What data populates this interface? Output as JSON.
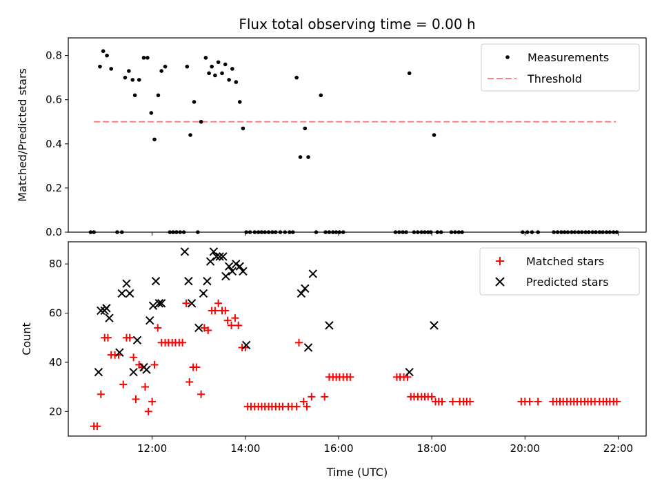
{
  "chart_data": [
    {
      "type": "scatter",
      "title": "Flux total observing time = 0.00 h",
      "xlabel": "",
      "ylabel": "Matched/Predicted stars",
      "ylim": [
        0,
        0.88
      ],
      "yticks": [
        "0.0",
        "0.2",
        "0.4",
        "0.6",
        "0.8"
      ],
      "ytick_values": [
        0,
        0.2,
        0.4,
        0.6,
        0.8
      ],
      "legend_position": "top-right",
      "threshold": {
        "name": "Threshold",
        "y": 0.5,
        "x": [
          10.75,
          21.95
        ],
        "color": "#ff8080",
        "style": "dashed"
      },
      "series": [
        {
          "name": "Measurements",
          "color": "#000000",
          "marker": "dot",
          "points": [
            [
              10.68,
              0
            ],
            [
              10.75,
              0
            ],
            [
              10.88,
              0.75
            ],
            [
              10.95,
              0.82
            ],
            [
              11.03,
              0.8
            ],
            [
              11.12,
              0.74
            ],
            [
              11.25,
              0
            ],
            [
              11.35,
              0
            ],
            [
              11.42,
              0.7
            ],
            [
              11.5,
              0.73
            ],
            [
              11.58,
              0.69
            ],
            [
              11.63,
              0.62
            ],
            [
              11.72,
              0.69
            ],
            [
              11.82,
              0.79
            ],
            [
              11.9,
              0.79
            ],
            [
              11.98,
              0.54
            ],
            [
              12.05,
              0.42
            ],
            [
              12.13,
              0.62
            ],
            [
              12.2,
              0.73
            ],
            [
              12.28,
              0.75
            ],
            [
              12.38,
              0
            ],
            [
              12.45,
              0
            ],
            [
              12.52,
              0
            ],
            [
              12.6,
              0
            ],
            [
              12.68,
              0
            ],
            [
              12.75,
              0.75
            ],
            [
              12.82,
              0.44
            ],
            [
              12.9,
              0.59
            ],
            [
              12.98,
              0
            ],
            [
              13.05,
              0.5
            ],
            [
              13.15,
              0.79
            ],
            [
              13.22,
              0.72
            ],
            [
              13.28,
              0.75
            ],
            [
              13.35,
              0.71
            ],
            [
              13.42,
              0.77
            ],
            [
              13.5,
              0.72
            ],
            [
              13.57,
              0.76
            ],
            [
              13.65,
              0.69
            ],
            [
              13.72,
              0.74
            ],
            [
              13.8,
              0.68
            ],
            [
              13.88,
              0.59
            ],
            [
              13.95,
              0.47
            ],
            [
              14.02,
              0
            ],
            [
              14.1,
              0
            ],
            [
              14.2,
              0
            ],
            [
              14.28,
              0
            ],
            [
              14.35,
              0
            ],
            [
              14.42,
              0
            ],
            [
              14.5,
              0
            ],
            [
              14.58,
              0
            ],
            [
              14.65,
              0
            ],
            [
              14.75,
              0
            ],
            [
              14.85,
              0
            ],
            [
              14.95,
              0
            ],
            [
              15.02,
              0
            ],
            [
              15.1,
              0.7
            ],
            [
              15.18,
              0.34
            ],
            [
              15.28,
              0.47
            ],
            [
              15.35,
              0.34
            ],
            [
              15.52,
              0
            ],
            [
              15.62,
              0.62
            ],
            [
              15.72,
              0
            ],
            [
              15.8,
              0
            ],
            [
              15.88,
              0
            ],
            [
              15.95,
              0
            ],
            [
              16.02,
              0
            ],
            [
              16.1,
              0
            ],
            [
              17.22,
              0
            ],
            [
              17.3,
              0
            ],
            [
              17.38,
              0
            ],
            [
              17.45,
              0
            ],
            [
              17.52,
              0.72
            ],
            [
              17.62,
              0
            ],
            [
              17.7,
              0
            ],
            [
              17.78,
              0
            ],
            [
              17.85,
              0
            ],
            [
              17.92,
              0
            ],
            [
              17.98,
              0
            ],
            [
              18.05,
              0.44
            ],
            [
              18.12,
              0
            ],
            [
              18.2,
              0
            ],
            [
              18.42,
              0
            ],
            [
              18.5,
              0
            ],
            [
              18.58,
              0
            ],
            [
              18.65,
              0
            ],
            [
              19.95,
              0
            ],
            [
              20.05,
              0
            ],
            [
              20.15,
              0
            ],
            [
              20.28,
              0
            ],
            [
              20.62,
              0
            ],
            [
              20.7,
              0
            ],
            [
              20.78,
              0
            ],
            [
              20.85,
              0
            ],
            [
              20.92,
              0
            ],
            [
              21.0,
              0
            ],
            [
              21.07,
              0
            ],
            [
              21.15,
              0
            ],
            [
              21.22,
              0
            ],
            [
              21.3,
              0
            ],
            [
              21.37,
              0
            ],
            [
              21.45,
              0
            ],
            [
              21.52,
              0
            ],
            [
              21.6,
              0
            ],
            [
              21.67,
              0
            ],
            [
              21.75,
              0
            ],
            [
              21.82,
              0
            ],
            [
              21.9,
              0
            ],
            [
              21.97,
              0
            ]
          ]
        }
      ]
    },
    {
      "type": "scatter",
      "title": "",
      "xlabel": "Time (UTC)",
      "ylabel": "Count",
      "xlim": [
        10.2,
        22.6
      ],
      "xticks": [
        "12:00",
        "14:00",
        "16:00",
        "18:00",
        "20:00",
        "22:00"
      ],
      "xtick_values": [
        12,
        14,
        16,
        18,
        20,
        22
      ],
      "ylim": [
        10,
        89
      ],
      "yticks": [
        "20",
        "40",
        "60",
        "80"
      ],
      "ytick_values": [
        20,
        40,
        60,
        80
      ],
      "legend_position": "top-right",
      "series": [
        {
          "name": "Matched stars",
          "color": "#ff0000",
          "marker": "plus",
          "points": [
            [
              10.75,
              14
            ],
            [
              10.82,
              14
            ],
            [
              10.9,
              27
            ],
            [
              10.98,
              50
            ],
            [
              11.05,
              50
            ],
            [
              11.12,
              43
            ],
            [
              11.2,
              43
            ],
            [
              11.28,
              43
            ],
            [
              11.38,
              31
            ],
            [
              11.45,
              50
            ],
            [
              11.52,
              50
            ],
            [
              11.6,
              42
            ],
            [
              11.65,
              25
            ],
            [
              11.72,
              39
            ],
            [
              11.78,
              38
            ],
            [
              11.85,
              30
            ],
            [
              11.92,
              20
            ],
            [
              12.0,
              24
            ],
            [
              12.05,
              39
            ],
            [
              12.12,
              54
            ],
            [
              12.2,
              48
            ],
            [
              12.28,
              48
            ],
            [
              12.35,
              48
            ],
            [
              12.43,
              48
            ],
            [
              12.5,
              48
            ],
            [
              12.58,
              48
            ],
            [
              12.65,
              48
            ],
            [
              12.73,
              64
            ],
            [
              12.8,
              32
            ],
            [
              12.88,
              38
            ],
            [
              12.95,
              38
            ],
            [
              13.05,
              27
            ],
            [
              13.12,
              54
            ],
            [
              13.2,
              53
            ],
            [
              13.28,
              61
            ],
            [
              13.35,
              61
            ],
            [
              13.42,
              64
            ],
            [
              13.5,
              61
            ],
            [
              13.57,
              61
            ],
            [
              13.62,
              57
            ],
            [
              13.7,
              55
            ],
            [
              13.78,
              58
            ],
            [
              13.85,
              55
            ],
            [
              13.93,
              46
            ],
            [
              14.0,
              46
            ],
            [
              14.05,
              22
            ],
            [
              14.12,
              22
            ],
            [
              14.2,
              22
            ],
            [
              14.28,
              22
            ],
            [
              14.35,
              22
            ],
            [
              14.42,
              22
            ],
            [
              14.5,
              22
            ],
            [
              14.57,
              22
            ],
            [
              14.65,
              22
            ],
            [
              14.73,
              22
            ],
            [
              14.8,
              22
            ],
            [
              14.92,
              22
            ],
            [
              15.0,
              22
            ],
            [
              15.1,
              22
            ],
            [
              15.15,
              48
            ],
            [
              15.25,
              24
            ],
            [
              15.32,
              22
            ],
            [
              15.42,
              26
            ],
            [
              15.7,
              26
            ],
            [
              15.8,
              34
            ],
            [
              15.88,
              34
            ],
            [
              15.95,
              34
            ],
            [
              16.02,
              34
            ],
            [
              16.1,
              34
            ],
            [
              16.18,
              34
            ],
            [
              16.25,
              34
            ],
            [
              17.25,
              34
            ],
            [
              17.32,
              34
            ],
            [
              17.4,
              34
            ],
            [
              17.48,
              34
            ],
            [
              17.55,
              26
            ],
            [
              17.62,
              26
            ],
            [
              17.7,
              26
            ],
            [
              17.78,
              26
            ],
            [
              17.85,
              26
            ],
            [
              17.92,
              26
            ],
            [
              18.0,
              26
            ],
            [
              18.08,
              24
            ],
            [
              18.15,
              24
            ],
            [
              18.22,
              24
            ],
            [
              18.45,
              24
            ],
            [
              18.6,
              24
            ],
            [
              18.68,
              24
            ],
            [
              18.75,
              24
            ],
            [
              18.82,
              24
            ],
            [
              19.92,
              24
            ],
            [
              20.0,
              24
            ],
            [
              20.1,
              24
            ],
            [
              20.28,
              24
            ],
            [
              20.6,
              24
            ],
            [
              20.68,
              24
            ],
            [
              20.75,
              24
            ],
            [
              20.82,
              24
            ],
            [
              20.9,
              24
            ],
            [
              20.98,
              24
            ],
            [
              21.05,
              24
            ],
            [
              21.12,
              24
            ],
            [
              21.2,
              24
            ],
            [
              21.28,
              24
            ],
            [
              21.35,
              24
            ],
            [
              21.42,
              24
            ],
            [
              21.5,
              24
            ],
            [
              21.6,
              24
            ],
            [
              21.68,
              24
            ],
            [
              21.75,
              24
            ],
            [
              21.82,
              24
            ],
            [
              21.9,
              24
            ],
            [
              21.97,
              24
            ]
          ]
        },
        {
          "name": "Predicted stars",
          "color": "#000000",
          "marker": "x",
          "points": [
            [
              10.85,
              36
            ],
            [
              10.9,
              61
            ],
            [
              10.98,
              61
            ],
            [
              11.02,
              62
            ],
            [
              11.08,
              58
            ],
            [
              11.3,
              44
            ],
            [
              11.35,
              68
            ],
            [
              11.45,
              72
            ],
            [
              11.52,
              68
            ],
            [
              11.6,
              36
            ],
            [
              11.68,
              49
            ],
            [
              11.82,
              38
            ],
            [
              11.88,
              37
            ],
            [
              11.95,
              57
            ],
            [
              12.02,
              63
            ],
            [
              12.08,
              73
            ],
            [
              12.15,
              64
            ],
            [
              12.2,
              64
            ],
            [
              12.7,
              85
            ],
            [
              12.78,
              73
            ],
            [
              12.85,
              64
            ],
            [
              13.0,
              54
            ],
            [
              13.1,
              68
            ],
            [
              13.18,
              73
            ],
            [
              13.25,
              81
            ],
            [
              13.32,
              85
            ],
            [
              13.38,
              83
            ],
            [
              13.45,
              83
            ],
            [
              13.52,
              83
            ],
            [
              13.58,
              75
            ],
            [
              13.65,
              79
            ],
            [
              13.72,
              77
            ],
            [
              13.8,
              80
            ],
            [
              13.88,
              79
            ],
            [
              13.95,
              77
            ],
            [
              14.02,
              47
            ],
            [
              15.2,
              68
            ],
            [
              15.28,
              70
            ],
            [
              15.35,
              46
            ],
            [
              15.45,
              76
            ],
            [
              15.8,
              55
            ],
            [
              17.52,
              36
            ],
            [
              18.05,
              55
            ]
          ]
        }
      ]
    }
  ]
}
